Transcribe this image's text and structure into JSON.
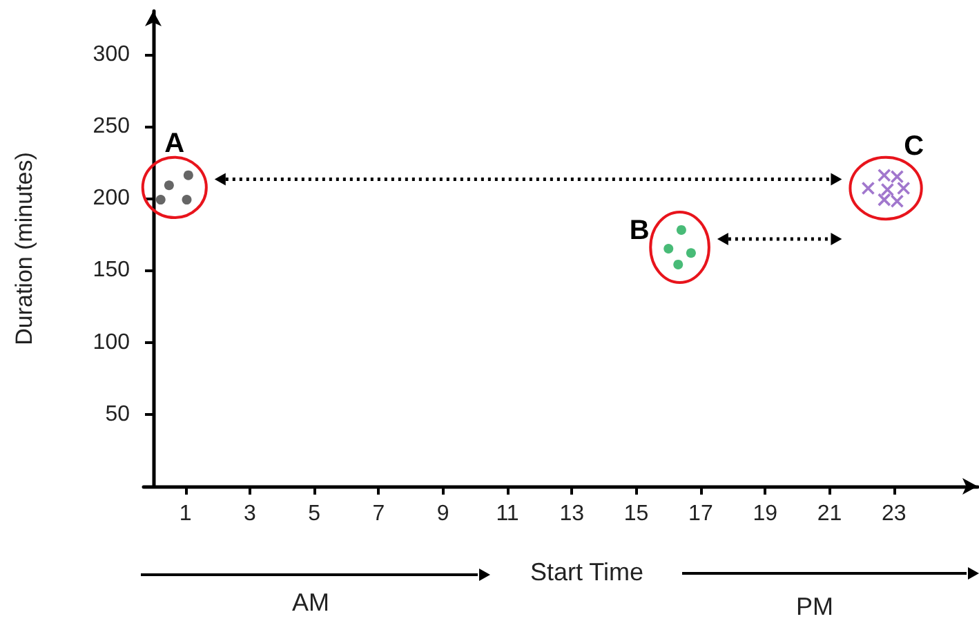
{
  "chart_data": {
    "type": "scatter",
    "xlabel": "Start Time",
    "ylabel": "Duration (minutes)",
    "xlim": [
      -0.3,
      25.6
    ],
    "ylim": [
      0,
      330
    ],
    "xticks": [
      1,
      3,
      5,
      7,
      9,
      11,
      13,
      15,
      17,
      19,
      21,
      23
    ],
    "yticks": [
      50,
      100,
      150,
      200,
      250,
      300
    ],
    "series": [
      {
        "color": "#404040",
        "marker": "circle",
        "x": [
          1.09,
          0.49,
          0.23,
          1.04
        ],
        "values": [
          216,
          209,
          199,
          199
        ]
      },
      {
        "color": "#1aaa55",
        "marker": "circle",
        "x": [
          16.4,
          16.0,
          16.7,
          16.3
        ],
        "values": [
          178,
          165,
          162,
          154
        ]
      },
      {
        "color": "#8a55c0",
        "marker": "cross",
        "x": [
          22.7,
          23.1,
          22.2,
          22.8,
          23.3,
          22.7,
          23.1
        ],
        "values": [
          216,
          215,
          207,
          206,
          207,
          199,
          198
        ]
      }
    ],
    "annotations": [
      "A",
      "B",
      "C",
      "AM",
      "PM"
    ]
  }
}
